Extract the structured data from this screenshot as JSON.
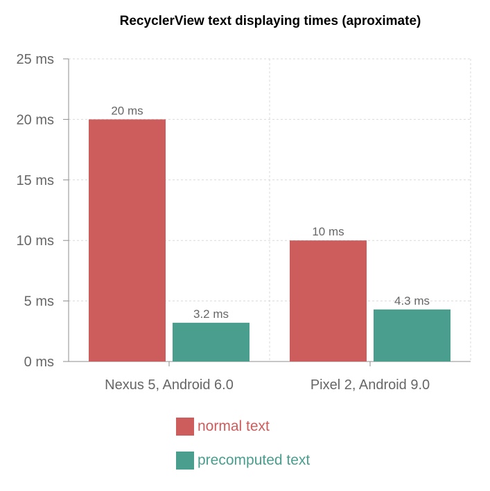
{
  "chart_data": {
    "type": "bar",
    "title": "RecyclerView text displaying times (aproximate)",
    "categories": [
      "Nexus 5, Android 6.0",
      "Pixel 2, Android 9.0"
    ],
    "series": [
      {
        "name": "normal text",
        "values": [
          20,
          10
        ],
        "labels": [
          "20 ms",
          "10 ms"
        ],
        "color": "#cd5c5c"
      },
      {
        "name": "precomputed text",
        "values": [
          3.2,
          4.3
        ],
        "labels": [
          "3.2 ms",
          "4.3 ms"
        ],
        "color": "#4a9e8e"
      }
    ],
    "y_ticks": [
      {
        "value": 0,
        "label": "0 ms"
      },
      {
        "value": 5,
        "label": "5 ms"
      },
      {
        "value": 10,
        "label": "10 ms"
      },
      {
        "value": 15,
        "label": "15 ms"
      },
      {
        "value": 20,
        "label": "20 ms"
      },
      {
        "value": 25,
        "label": "25 ms"
      }
    ],
    "ylim": [
      0,
      25
    ],
    "grid": true,
    "legend_position": "bottom"
  }
}
